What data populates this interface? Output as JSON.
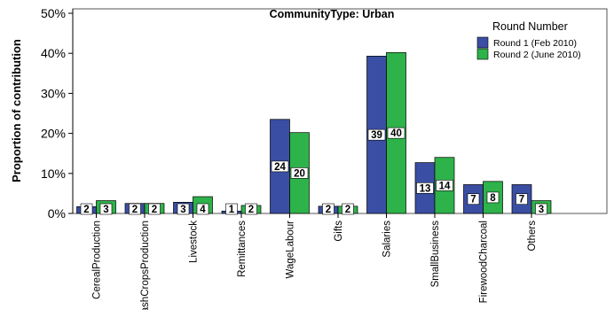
{
  "colors": {
    "series_1": "#3a4ea3",
    "series_2": "#2eb24a",
    "frame": "#555555",
    "axis": "#000000"
  },
  "chart_data": {
    "type": "bar",
    "title": "CommunityType: Urban",
    "xlabel": "",
    "ylabel": "Proportion of contribution",
    "ylim": [
      0,
      50
    ],
    "yticks": [
      "0%",
      "10%",
      "20%",
      "30%",
      "40%",
      "50%"
    ],
    "grid": false,
    "legend_title": "Round Number",
    "legend_position": "top-right",
    "categories": [
      "CerealProduction",
      "CashCropsProduction",
      "Livestock",
      "Remittances",
      "WageLabour",
      "Gifts",
      "Salaries",
      "SmallBusiness",
      "FirewoodCharcoal",
      "Others"
    ],
    "series": [
      {
        "name": "Round 1 (Feb 2010)",
        "values": [
          1.7,
          2.5,
          2.8,
          0.6,
          23.5,
          1.8,
          39.3,
          12.7,
          7.2,
          7.2
        ],
        "labels": [
          "2",
          "2",
          "3",
          "1",
          "24",
          "2",
          "39",
          "13",
          "7",
          "7"
        ]
      },
      {
        "name": "Round 2 (June 2010)",
        "values": [
          3.2,
          2.5,
          4.2,
          2.0,
          20.2,
          1.8,
          40.2,
          14.0,
          8.0,
          3.2
        ],
        "labels": [
          "3",
          "2",
          "4",
          "2",
          "20",
          "2",
          "40",
          "14",
          "8",
          "3"
        ]
      }
    ]
  }
}
